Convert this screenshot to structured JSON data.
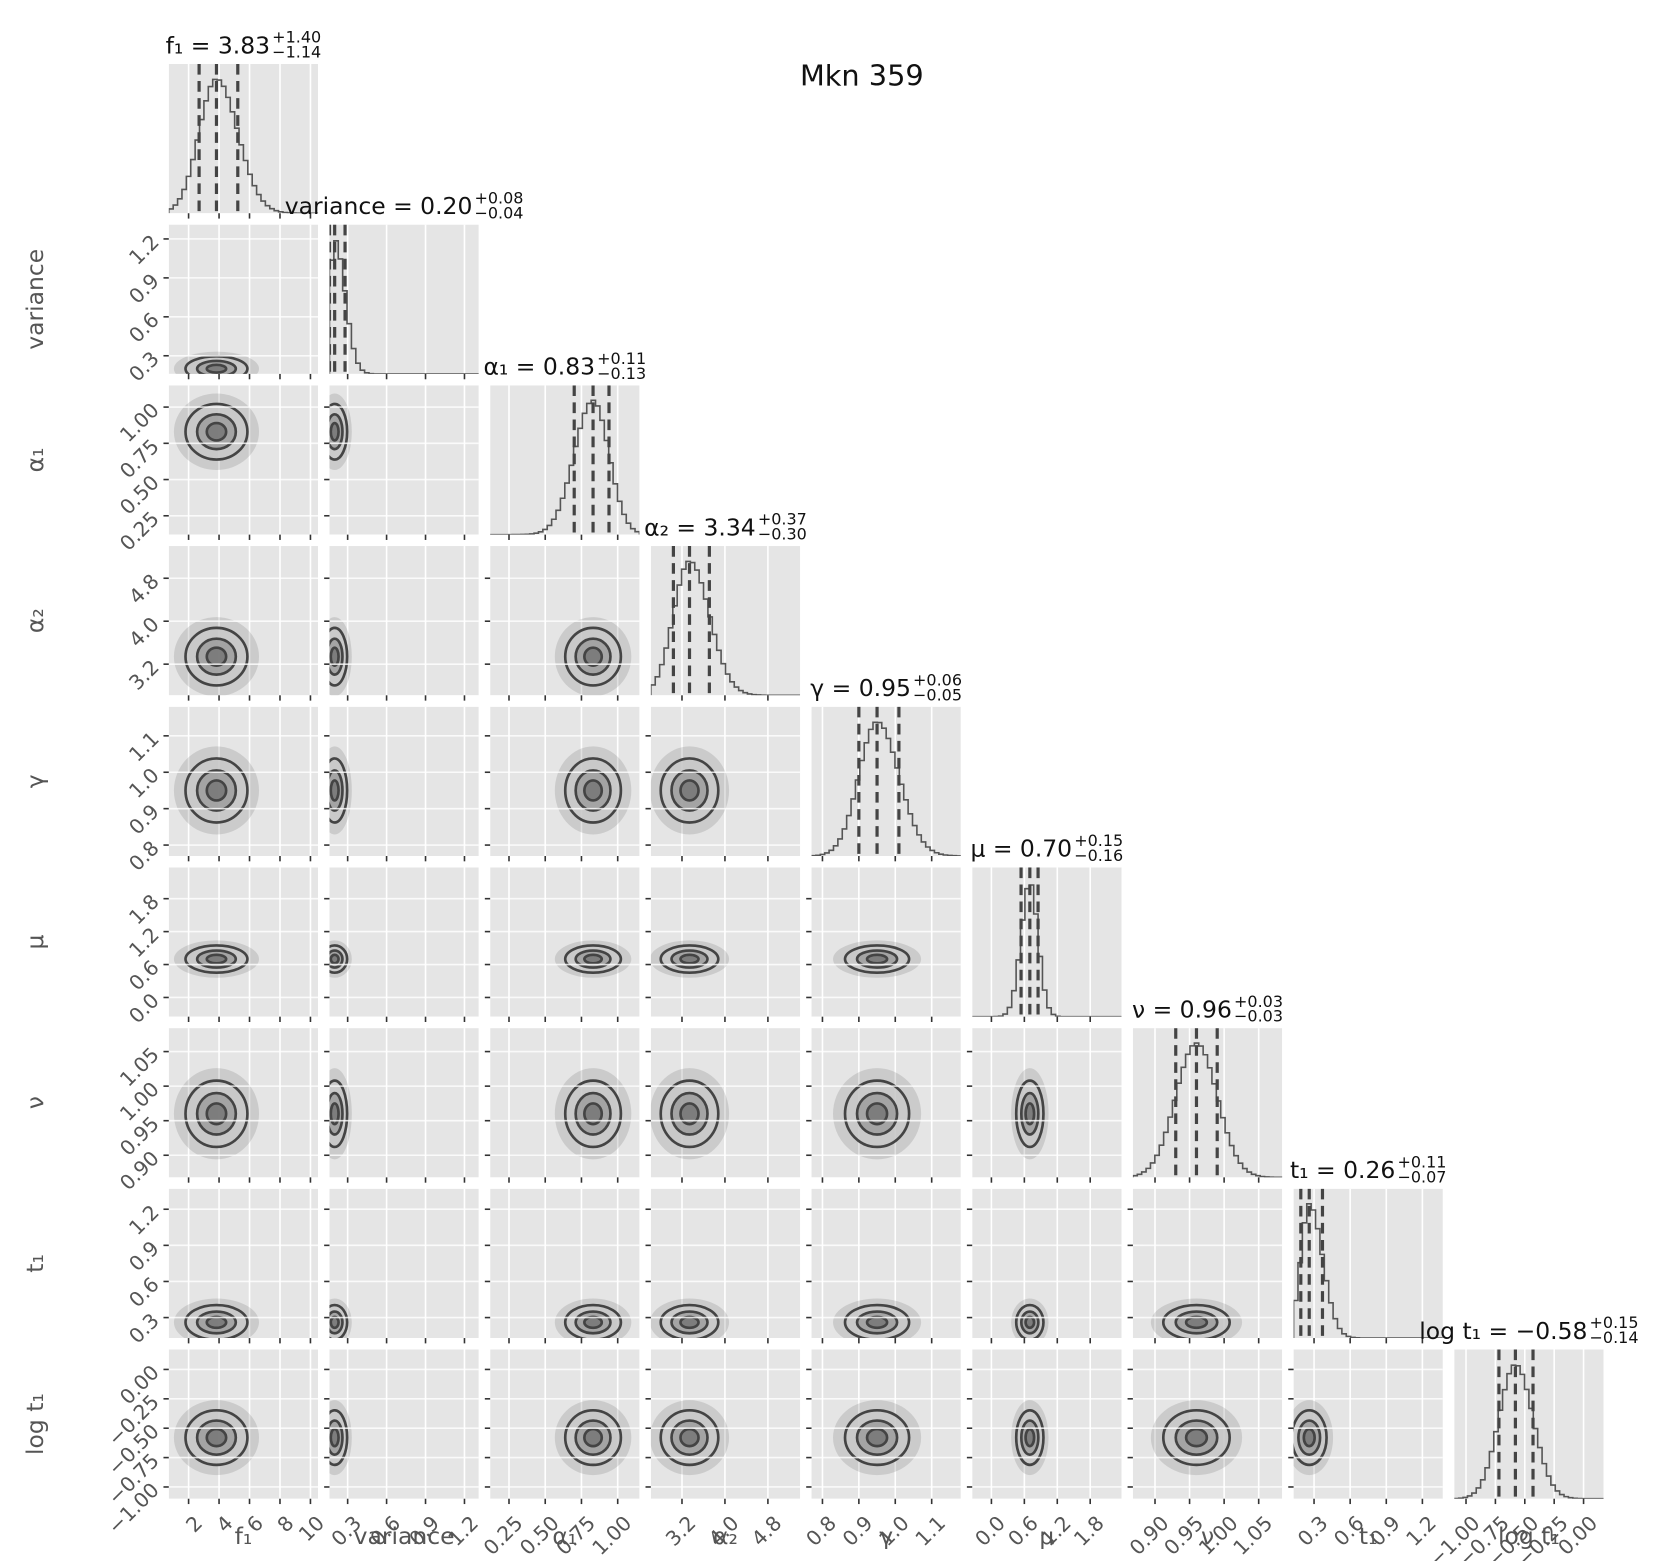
{
  "chart_data": {
    "type": "corner",
    "title": "Mkn 359",
    "params": [
      {
        "name": "f₁",
        "title": "f₁ = 3.83",
        "sup": "+1.40",
        "sub": "−1.14",
        "median": 3.83,
        "plus": 1.4,
        "minus": 1.14,
        "lim": [
          0.7,
          10.5
        ],
        "ticks": [
          2,
          4,
          6,
          8,
          10
        ]
      },
      {
        "name": "variance",
        "title": "variance = 0.20",
        "sup": "+0.08",
        "sub": "−0.04",
        "median": 0.2,
        "plus": 0.08,
        "minus": 0.04,
        "lim": [
          0.16,
          1.31
        ],
        "ticks": [
          0.3,
          0.6,
          0.9,
          1.2
        ]
      },
      {
        "name": "α₁",
        "title": "α₁ = 0.83",
        "sup": "+0.11",
        "sub": "−0.13",
        "median": 0.83,
        "plus": 0.11,
        "minus": 0.13,
        "lim": [
          0.12,
          1.15
        ],
        "ticks": [
          0.25,
          {
            "value": 0.5,
            "label": "0.50"
          },
          0.75,
          {
            "value": 1,
            "label": "1.00"
          }
        ]
      },
      {
        "name": "α₂",
        "title": "α₂ = 3.34",
        "sup": "+0.37",
        "sub": "−0.30",
        "median": 3.34,
        "plus": 0.37,
        "minus": 0.3,
        "lim": [
          2.62,
          5.4
        ],
        "ticks": [
          3.2,
          {
            "value": 4,
            "label": "4.0"
          },
          4.8
        ]
      },
      {
        "name": "γ",
        "title": "γ = 0.95",
        "sup": "+0.06",
        "sub": "−0.05",
        "median": 0.95,
        "plus": 0.06,
        "minus": 0.05,
        "lim": [
          0.77,
          1.18
        ],
        "ticks": [
          0.8,
          0.9,
          {
            "value": 1,
            "label": "1.0"
          },
          1.1
        ]
      },
      {
        "name": "μ",
        "title": "μ = 0.70",
        "sup": "+0.15",
        "sub": "−0.16",
        "median": 0.7,
        "plus": 0.15,
        "minus": 0.16,
        "lim": [
          -0.35,
          2.37
        ],
        "ticks": [
          {
            "value": 0,
            "label": "0.0"
          },
          0.6,
          1.2,
          1.8
        ]
      },
      {
        "name": "ν",
        "title": "ν = 0.96",
        "sup": "+0.03",
        "sub": "−0.03",
        "median": 0.96,
        "plus": 0.03,
        "minus": 0.03,
        "lim": [
          0.868,
          1.084
        ],
        "ticks": [
          {
            "value": 0.9,
            "label": "0.90"
          },
          0.95,
          {
            "value": 1,
            "label": "1.00"
          },
          1.05
        ]
      },
      {
        "name": "t₁",
        "title": "t₁ = 0.26",
        "sup": "+0.11",
        "sub": "−0.07",
        "median": 0.26,
        "plus": 0.11,
        "minus": 0.07,
        "lim": [
          0.13,
          1.37
        ],
        "ticks": [
          0.3,
          0.6,
          0.9,
          1.2
        ]
      },
      {
        "name": "log t₁",
        "title": "log t₁ = −0.58",
        "sup": "+0.15",
        "sub": "−0.14",
        "median": -0.58,
        "plus": 0.15,
        "minus": 0.14,
        "lim": [
          -1.1,
          0.17
        ],
        "ticks": [
          {
            "value": -1,
            "label": "−1.00"
          },
          {
            "value": -0.75,
            "label": "−0.75"
          },
          {
            "value": -0.5,
            "label": "−0.50"
          },
          {
            "value": -0.25,
            "label": "−0.25"
          },
          {
            "value": 0,
            "label": "0.00"
          }
        ]
      }
    ]
  }
}
